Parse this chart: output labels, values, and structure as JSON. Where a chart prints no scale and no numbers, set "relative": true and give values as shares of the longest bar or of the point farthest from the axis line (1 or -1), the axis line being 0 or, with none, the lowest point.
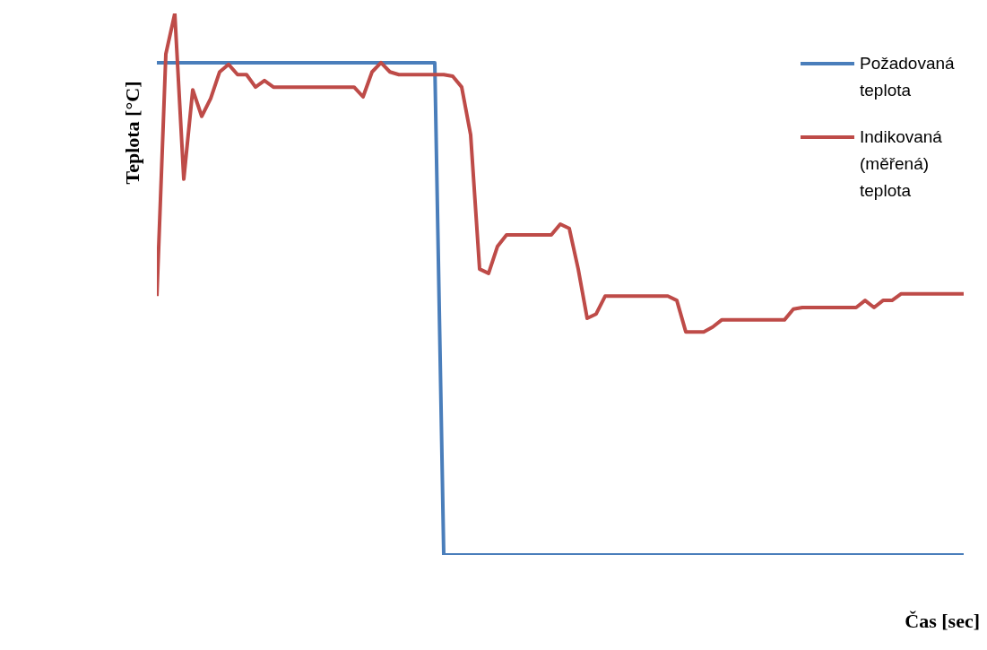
{
  "chart_data": {
    "type": "line",
    "relative": true,
    "ylabel": "Teplota [°C]",
    "xlabel": "Čas [sec]",
    "legend": "top right",
    "grid": false,
    "marker": "none",
    "line_style": "solid",
    "categories": [
      null,
      null,
      null,
      null,
      null,
      null,
      null,
      null,
      null,
      null,
      null,
      null,
      null,
      null,
      null,
      null,
      null,
      null,
      null,
      null,
      null,
      null,
      null,
      null,
      null,
      null,
      null,
      null,
      null,
      null,
      null,
      null,
      null,
      null,
      null,
      null,
      null,
      null,
      null,
      null,
      null,
      null,
      null,
      null,
      null,
      null,
      null,
      null,
      null,
      null,
      null,
      null,
      null,
      null,
      null,
      null,
      null,
      null,
      null,
      null,
      null,
      null,
      null,
      null,
      null,
      null,
      null,
      null,
      null,
      null,
      null,
      null,
      null,
      null,
      null,
      null,
      null,
      null,
      null,
      null,
      null,
      null,
      null,
      null,
      null,
      null,
      null,
      null,
      null,
      null,
      null
    ],
    "series": [
      {
        "name": "Požadovaná teplota",
        "color": "#4a7ebb",
        "values": [
          0.909,
          0.909,
          0.909,
          0.909,
          0.909,
          0.909,
          0.909,
          0.909,
          0.909,
          0.909,
          0.909,
          0.909,
          0.909,
          0.909,
          0.909,
          0.909,
          0.909,
          0.909,
          0.909,
          0.909,
          0.909,
          0.909,
          0.909,
          0.909,
          0.909,
          0.909,
          0.909,
          0.909,
          0.909,
          0.909,
          0.909,
          0.909,
          0,
          0,
          0,
          0,
          0,
          0,
          0,
          0,
          0,
          0,
          0,
          0,
          0,
          0,
          0,
          0,
          0,
          0,
          0,
          0,
          0,
          0,
          0,
          0,
          0,
          0,
          0,
          0,
          0,
          0,
          0,
          0,
          0,
          0,
          0,
          0,
          0,
          0,
          0,
          0,
          0,
          0,
          0,
          0,
          0,
          0,
          0,
          0,
          0,
          0,
          0,
          0,
          0,
          0,
          0,
          0,
          0,
          0,
          0
        ]
      },
      {
        "name": "Indikovaná (měřená) teplota",
        "color": "#be4b48",
        "values": [
          0.478,
          0.925,
          1.0,
          0.694,
          0.859,
          0.81,
          0.843,
          0.892,
          0.906,
          0.887,
          0.887,
          0.864,
          0.876,
          0.864,
          0.864,
          0.864,
          0.864,
          0.864,
          0.864,
          0.864,
          0.864,
          0.864,
          0.864,
          0.846,
          0.892,
          0.909,
          0.892,
          0.887,
          0.887,
          0.887,
          0.887,
          0.887,
          0.887,
          0.884,
          0.864,
          0.776,
          0.528,
          0.52,
          0.57,
          0.591,
          0.591,
          0.591,
          0.591,
          0.591,
          0.591,
          0.611,
          0.603,
          0.528,
          0.437,
          0.445,
          0.478,
          0.478,
          0.478,
          0.478,
          0.478,
          0.478,
          0.478,
          0.478,
          0.47,
          0.412,
          0.412,
          0.412,
          0.421,
          0.434,
          0.434,
          0.434,
          0.434,
          0.434,
          0.434,
          0.434,
          0.434,
          0.454,
          0.457,
          0.457,
          0.457,
          0.457,
          0.457,
          0.457,
          0.457,
          0.47,
          0.457,
          0.47,
          0.47,
          0.482,
          0.482,
          0.482,
          0.482,
          0.482,
          0.482,
          0.482,
          0.482
        ]
      }
    ]
  }
}
